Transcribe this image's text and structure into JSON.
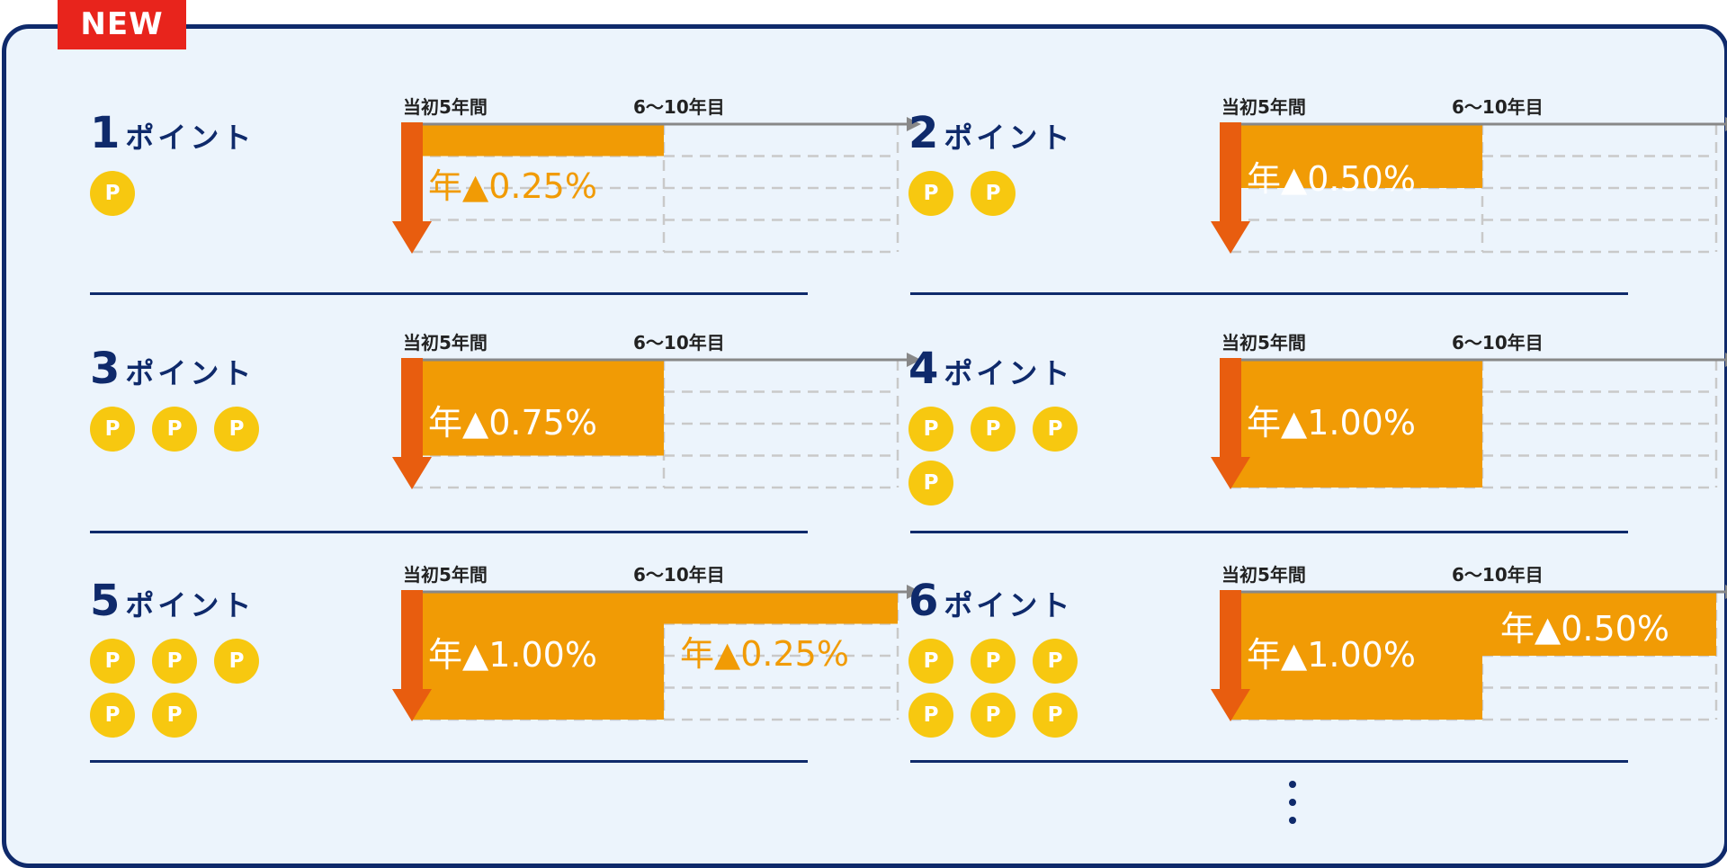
{
  "badge": "NEW",
  "header_initial": "当初5年間",
  "header_later": "6〜10年目",
  "coin_letter": "P",
  "colors": {
    "navy": "#0f2a6b",
    "bar": "#f19b05",
    "arrow": "#e85d0f",
    "coin": "#f7c810",
    "panel": "#ecf4fc",
    "badge": "#e8241c"
  },
  "blocks": [
    {
      "id": 1,
      "points": "1",
      "suffix": "ポイント",
      "coins": 1,
      "initial_rate": 0.25,
      "initial_label": "年▲0.25%",
      "later_rate": 0,
      "later_label": ""
    },
    {
      "id": 2,
      "points": "2",
      "suffix": "ポイント",
      "coins": 2,
      "initial_rate": 0.5,
      "initial_label": "年▲0.50%",
      "later_rate": 0,
      "later_label": ""
    },
    {
      "id": 3,
      "points": "3",
      "suffix": "ポイント",
      "coins": 3,
      "initial_rate": 0.75,
      "initial_label": "年▲0.75%",
      "later_rate": 0,
      "later_label": ""
    },
    {
      "id": 4,
      "points": "4",
      "suffix": "ポイント",
      "coins": 4,
      "initial_rate": 1.0,
      "initial_label": "年▲1.00%",
      "later_rate": 0,
      "later_label": ""
    },
    {
      "id": 5,
      "points": "5",
      "suffix": "ポイント",
      "coins": 5,
      "initial_rate": 1.0,
      "initial_label": "年▲1.00%",
      "later_rate": 0.25,
      "later_label": "年▲0.25%"
    },
    {
      "id": 6,
      "points": "6",
      "suffix": "ポイント",
      "coins": 6,
      "initial_rate": 1.0,
      "initial_label": "年▲1.00%",
      "later_rate": 0.5,
      "later_label": "年▲0.50%"
    }
  ],
  "continuation_icon": "vertical-ellipsis-icon"
}
